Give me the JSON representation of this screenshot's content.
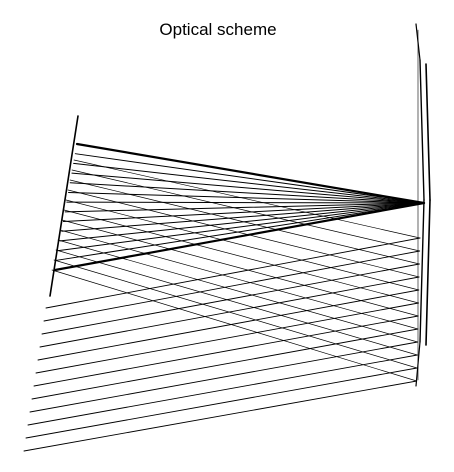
{
  "title": "Optical scheme",
  "colors": {
    "background": "#ffffff",
    "ray": "#000000"
  }
}
